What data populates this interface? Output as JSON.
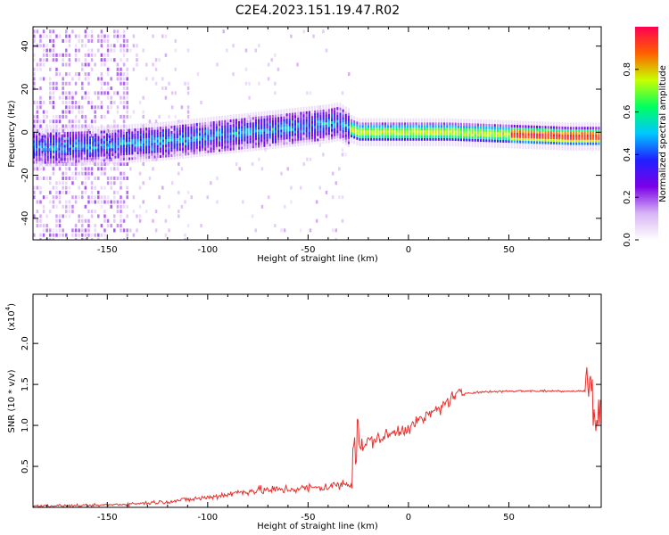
{
  "figure": {
    "title": "C2E4.2023.151.19.47.R02"
  },
  "chart_data": [
    {
      "type": "heatmap",
      "title": "",
      "xlabel": "Height of straight line (km)",
      "ylabel": "Frequency (Hz)",
      "xlim": [
        -187,
        96
      ],
      "ylim": [
        -50,
        49
      ],
      "x_ticks": [
        -150,
        -100,
        -50,
        0,
        50
      ],
      "y_ticks": [
        -40,
        -20,
        0,
        20,
        40
      ],
      "colorbar": {
        "label": "Normalized spectral amplitude",
        "range": [
          0,
          1
        ],
        "ticks": [
          0.0,
          0.2,
          0.4,
          0.6,
          0.8
        ],
        "colormap": [
          "#ffffff",
          "#d8b4f4",
          "#7a00e8",
          "#2020ff",
          "#00c8ff",
          "#00ff60",
          "#c8ff00",
          "#ff6000",
          "#ff0050"
        ]
      },
      "ridge": {
        "x": [
          -180,
          -150,
          -120,
          -100,
          -80,
          -60,
          -40,
          -35,
          -30,
          -25,
          -20,
          0,
          20,
          50,
          80,
          95
        ],
        "freq": [
          -7,
          -6,
          -4,
          -2,
          0,
          2,
          4,
          5,
          2,
          0,
          0,
          0,
          0,
          -1,
          -2,
          -2
        ]
      }
    },
    {
      "type": "line",
      "title": "",
      "xlabel": "Height of straight line (km)",
      "ylabel": "SNR (10 * v/v)",
      "y_scale_label": "(x10",
      "y_scale_exp": "4",
      "xlim": [
        -187,
        96
      ],
      "ylim": [
        0,
        2.6
      ],
      "x_ticks": [
        -150,
        -100,
        -50,
        0,
        50
      ],
      "y_ticks": [
        0.5,
        1.0,
        1.5,
        2.0
      ],
      "series": [
        {
          "name": "SNR",
          "color": "#e8302e",
          "x": [
            -187,
            -160,
            -140,
            -120,
            -100,
            -90,
            -80,
            -60,
            -45,
            -40,
            -28,
            -25,
            -20,
            -10,
            0,
            10,
            20,
            25,
            30,
            50,
            70,
            88,
            91,
            93,
            96
          ],
          "y": [
            0.02,
            0.02,
            0.04,
            0.07,
            0.12,
            0.16,
            0.2,
            0.22,
            0.24,
            0.25,
            0.3,
            0.7,
            0.8,
            0.88,
            0.98,
            1.12,
            1.3,
            1.38,
            1.4,
            1.42,
            1.42,
            1.42,
            1.6,
            0.9,
            1.3
          ]
        }
      ]
    }
  ]
}
